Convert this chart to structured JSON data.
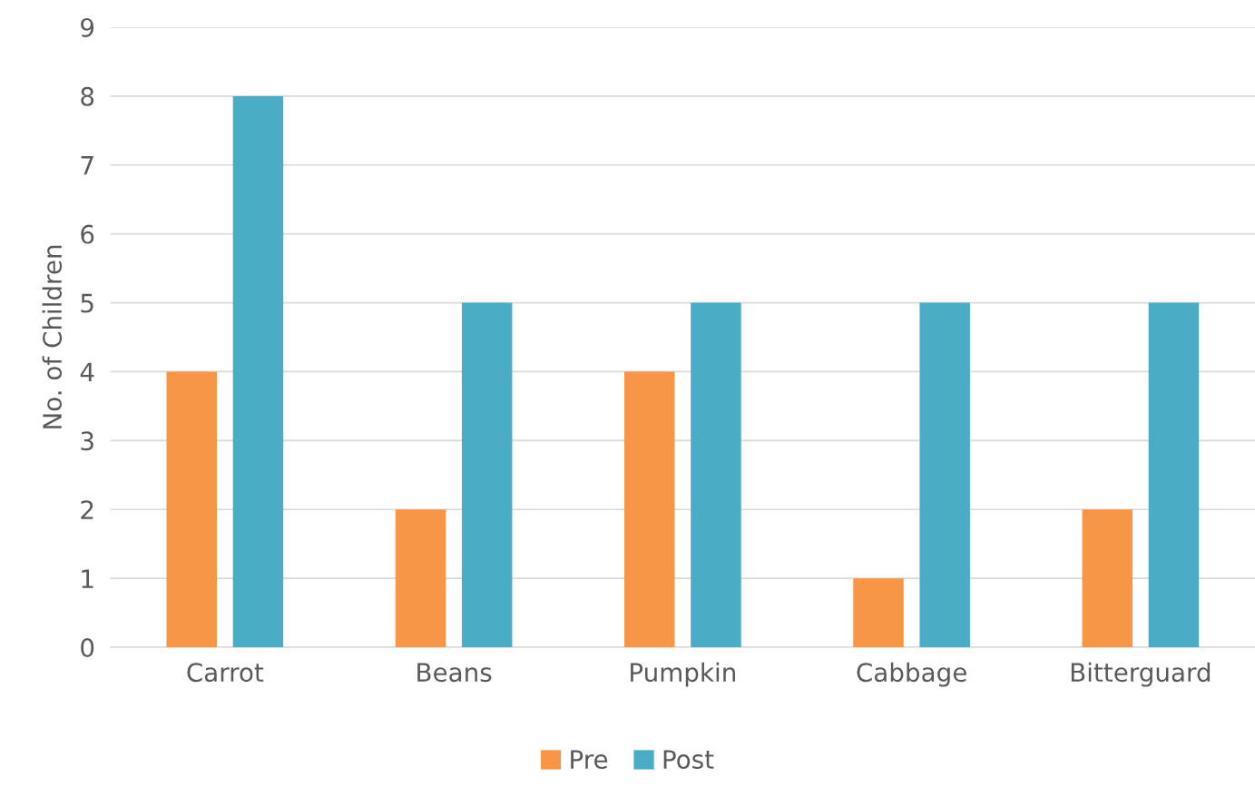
{
  "chart_data": {
    "type": "bar",
    "ylabel": "No. of Children",
    "categories": [
      "Carrot",
      "Beans",
      "Pumpkin",
      "Cabbage",
      "Bitterguard"
    ],
    "series": [
      {
        "name": "Pre",
        "color": "#f79646",
        "values": [
          4,
          2,
          4,
          1,
          2
        ]
      },
      {
        "name": "Post",
        "color": "#4bacc6",
        "values": [
          8,
          5,
          5,
          5,
          5
        ]
      }
    ],
    "ylim": [
      0,
      9
    ],
    "yticks": [
      0,
      1,
      2,
      3,
      4,
      5,
      6,
      7,
      8,
      9
    ],
    "grid": "y",
    "legend": "bottom"
  }
}
